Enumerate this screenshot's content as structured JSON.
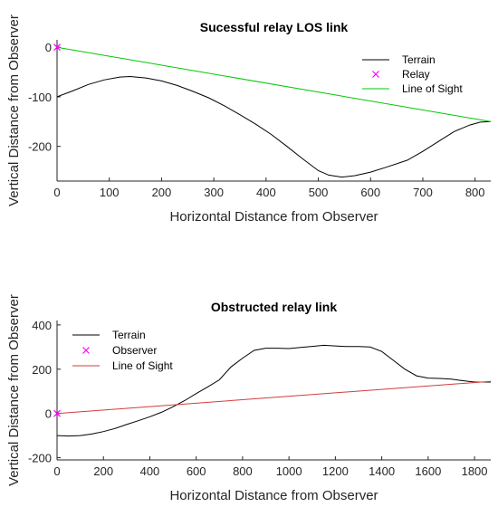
{
  "chart_data": [
    {
      "type": "line",
      "title": "Sucessful relay LOS link",
      "xlabel": "Horizontal Distance from Observer",
      "ylabel": "Vertical Distance from Observer",
      "xlim": [
        0,
        830
      ],
      "ylim": [
        -270,
        15
      ],
      "xticks": [
        0,
        100,
        200,
        300,
        400,
        500,
        600,
        700,
        800
      ],
      "yticks": [
        0,
        -100,
        -200
      ],
      "legend_position": "top-right",
      "series": [
        {
          "name": "Terrain",
          "kind": "line",
          "color": "#000000",
          "x": [
            0,
            30,
            60,
            90,
            120,
            140,
            170,
            200,
            230,
            260,
            290,
            320,
            350,
            380,
            410,
            440,
            470,
            500,
            520,
            545,
            570,
            600,
            630,
            670,
            700,
            730,
            760,
            790,
            810,
            830
          ],
          "y": [
            -100,
            -88,
            -75,
            -66,
            -60,
            -59,
            -62,
            -68,
            -77,
            -89,
            -102,
            -118,
            -136,
            -155,
            -176,
            -200,
            -225,
            -249,
            -258,
            -262,
            -259,
            -252,
            -242,
            -228,
            -210,
            -190,
            -170,
            -157,
            -151,
            -150
          ]
        },
        {
          "name": "Relay",
          "kind": "marker",
          "color": "#ff00ff",
          "x": [
            0
          ],
          "y": [
            0
          ]
        },
        {
          "name": "Line of Sight",
          "kind": "line",
          "color": "#00c800",
          "x": [
            0,
            830
          ],
          "y": [
            0,
            -150
          ]
        }
      ]
    },
    {
      "type": "line",
      "title": "Obstructed relay link",
      "xlabel": "Horizontal Distance from Observer",
      "ylabel": "Vertical Distance from Observer",
      "xlim": [
        0,
        1870
      ],
      "ylim": [
        -210,
        420
      ],
      "xticks": [
        0,
        200,
        400,
        600,
        800,
        1000,
        1200,
        1400,
        1600,
        1800
      ],
      "yticks": [
        400,
        200,
        0,
        -200
      ],
      "legend_position": "top-left",
      "series": [
        {
          "name": "Terrain",
          "kind": "line",
          "color": "#000000",
          "x": [
            0,
            50,
            100,
            150,
            200,
            250,
            300,
            350,
            400,
            450,
            500,
            550,
            600,
            650,
            700,
            750,
            800,
            850,
            900,
            950,
            1000,
            1050,
            1100,
            1150,
            1200,
            1250,
            1300,
            1350,
            1400,
            1450,
            1500,
            1550,
            1600,
            1650,
            1700,
            1750,
            1800,
            1870
          ],
          "y": [
            -100,
            -102,
            -100,
            -93,
            -82,
            -68,
            -50,
            -33,
            -15,
            5,
            30,
            58,
            90,
            120,
            152,
            210,
            250,
            285,
            295,
            295,
            293,
            298,
            303,
            308,
            305,
            302,
            302,
            300,
            280,
            240,
            200,
            170,
            160,
            158,
            155,
            148,
            142,
            142
          ]
        },
        {
          "name": "Observer",
          "kind": "marker",
          "color": "#ff00ff",
          "x": [
            0
          ],
          "y": [
            0
          ]
        },
        {
          "name": "Line of Sight",
          "kind": "line",
          "color": "#d23c3c",
          "x": [
            0,
            1870
          ],
          "y": [
            0,
            145
          ]
        }
      ]
    }
  ]
}
